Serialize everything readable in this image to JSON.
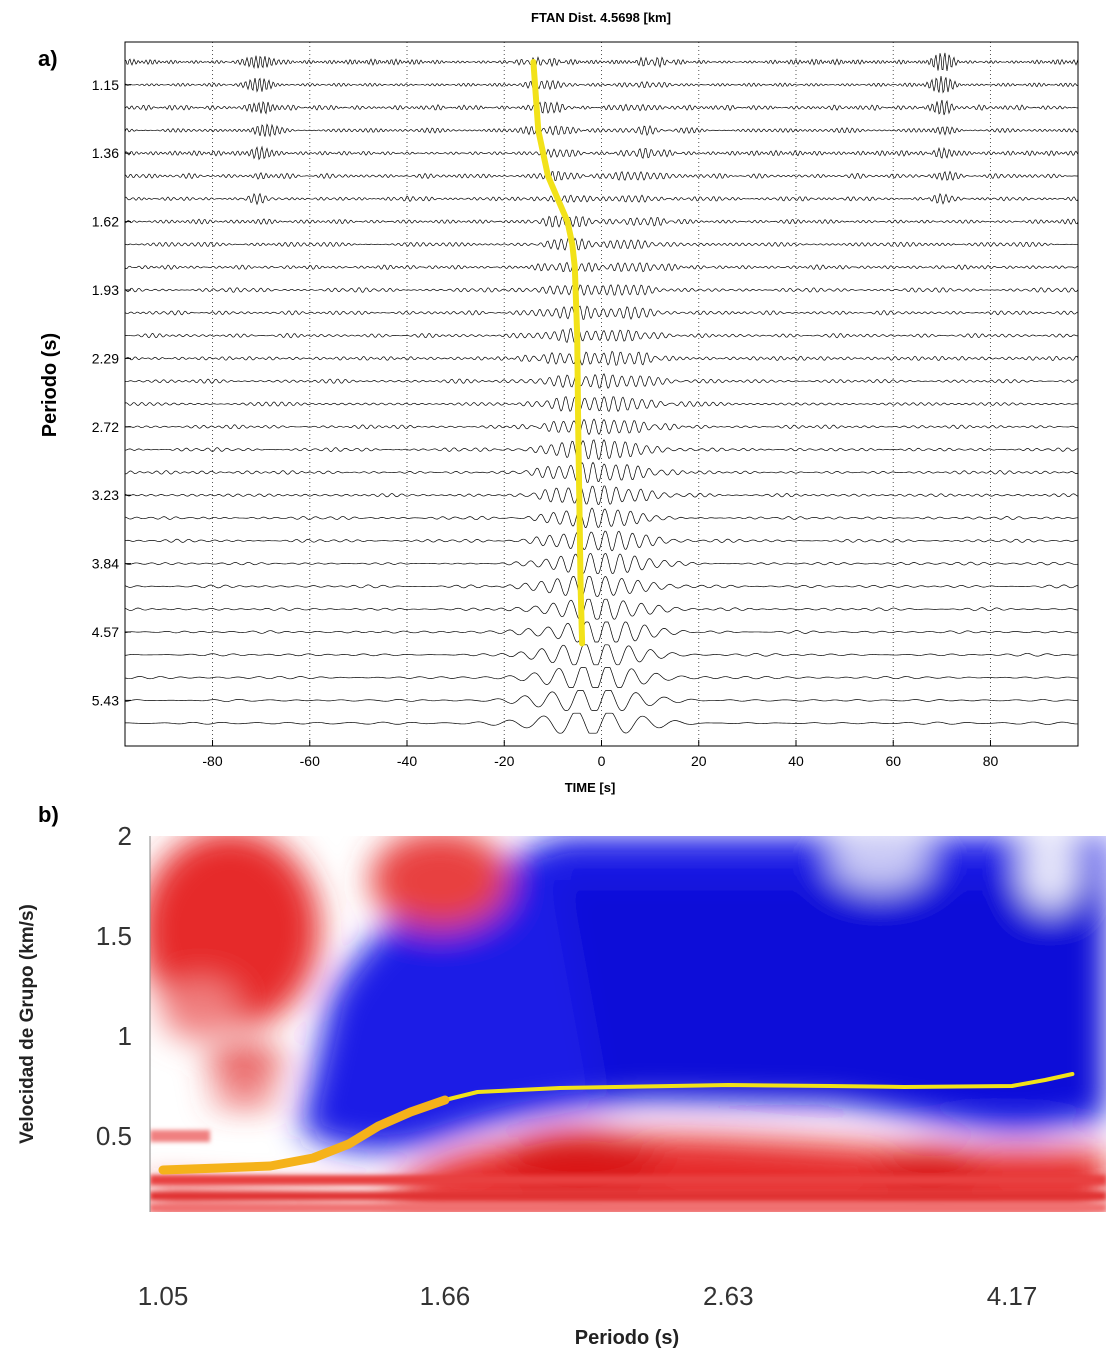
{
  "panels": {
    "a_label": "a)",
    "b_label": "b)"
  },
  "colors": {
    "curve_yellow": "#f2e219",
    "curve_orange": "#f5b21a",
    "trace": "#000000",
    "map_red": "#e32a2a",
    "map_blue": "#1a1ae0"
  },
  "chart_data": [
    {
      "type": "line",
      "title": "FTAN Dist. 4.5698 [km]",
      "xlabel": "TIME [s]",
      "ylabel": "Periodo (s)",
      "xlim": [
        -98,
        98
      ],
      "x_ticks": [
        -80,
        -60,
        -40,
        -20,
        0,
        20,
        40,
        60,
        80
      ],
      "x_tick_labels": [
        "-80",
        "-60",
        "-40",
        "-20",
        "0",
        "20",
        "40",
        "60",
        "80"
      ],
      "y_tick_labels": [
        "1.15",
        "1.36",
        "1.62",
        "1.93",
        "2.29",
        "2.72",
        "3.23",
        "3.84",
        "4.57",
        "5.43"
      ],
      "grid": "vertical dotted",
      "trace_count": 30,
      "picked_curve": {
        "name": "",
        "points": [
          {
            "time": -14,
            "trace": 0
          },
          {
            "time": -13,
            "trace": 3
          },
          {
            "time": -11,
            "trace": 5
          },
          {
            "time": -9,
            "trace": 6
          },
          {
            "time": -7,
            "trace": 7
          },
          {
            "time": -6,
            "trace": 8
          },
          {
            "time": -5.5,
            "trace": 9
          },
          {
            "time": -5,
            "trace": 12
          },
          {
            "time": -4.8,
            "trace": 16
          },
          {
            "time": -4.5,
            "trace": 20
          },
          {
            "time": -4.3,
            "trace": 23
          },
          {
            "time": -4,
            "trace": 25.5
          }
        ]
      }
    },
    {
      "type": "heatmap",
      "title": "",
      "xlabel": "Periodo (s)",
      "ylabel": "Velocidad de Grupo (km/s)",
      "x_tick_labels": [
        "1.05",
        "1.66",
        "2.63",
        "4.17"
      ],
      "ylim": [
        0.12,
        2.0
      ],
      "y_ticks": [
        0.5,
        1,
        1.5,
        2
      ],
      "y_tick_labels": [
        "0.5",
        "1",
        "1.5",
        "2"
      ],
      "dispersion_curve": {
        "name": "",
        "points": [
          {
            "periodo": 1.05,
            "velocidad": 0.33
          },
          {
            "periodo": 1.15,
            "velocidad": 0.34
          },
          {
            "periodo": 1.25,
            "velocidad": 0.35
          },
          {
            "periodo": 1.34,
            "velocidad": 0.39
          },
          {
            "periodo": 1.42,
            "velocidad": 0.46
          },
          {
            "periodo": 1.49,
            "velocidad": 0.55
          },
          {
            "periodo": 1.57,
            "velocidad": 0.62
          },
          {
            "periodo": 1.66,
            "velocidad": 0.68
          },
          {
            "periodo": 1.75,
            "velocidad": 0.72
          },
          {
            "periodo": 2.0,
            "velocidad": 0.74
          },
          {
            "periodo": 2.4,
            "velocidad": 0.75
          },
          {
            "periodo": 2.63,
            "velocidad": 0.755
          },
          {
            "periodo": 3.1,
            "velocidad": 0.75
          },
          {
            "periodo": 3.5,
            "velocidad": 0.745
          },
          {
            "periodo": 4.17,
            "velocidad": 0.75
          },
          {
            "periodo": 4.4,
            "velocidad": 0.78
          },
          {
            "periodo": 4.6,
            "velocidad": 0.81
          }
        ]
      }
    }
  ]
}
